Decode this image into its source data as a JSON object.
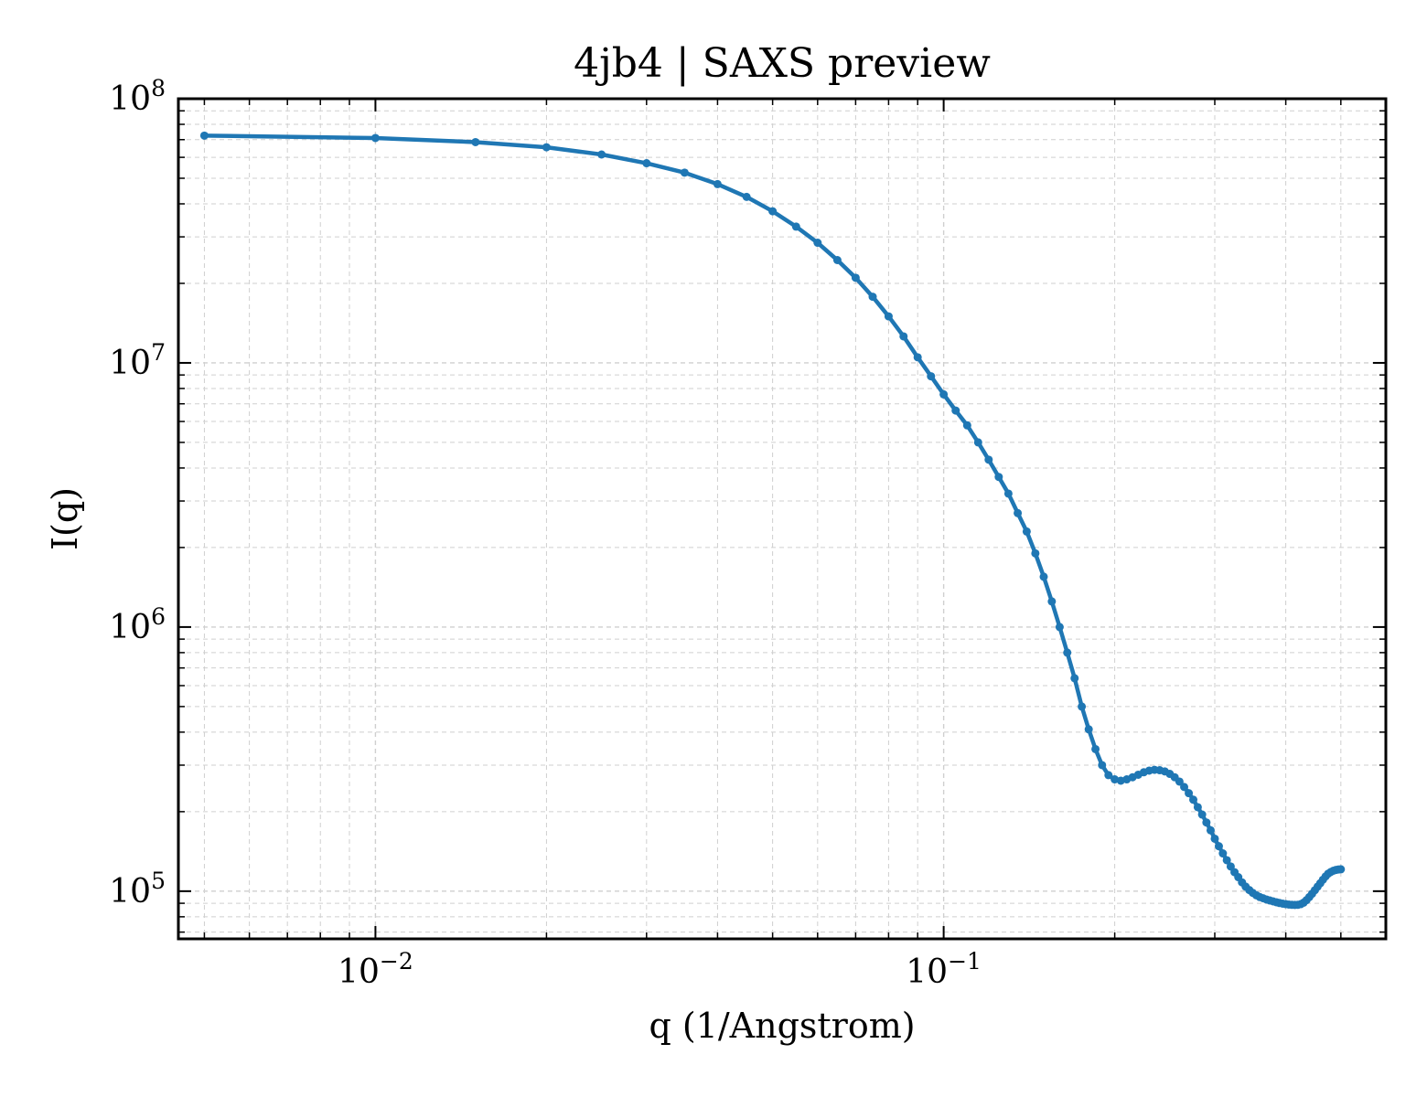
{
  "chart_data": {
    "type": "line",
    "title": "4jb4 | SAXS preview",
    "xlabel": "q (1/Angstrom)",
    "ylabel": "I(q)",
    "xscale": "log",
    "yscale": "log",
    "xlim": [
      0.0045,
      0.6
    ],
    "ylim": [
      66000,
      100000000
    ],
    "grid": true,
    "legend": "none",
    "colors": {
      "series": "#1f77b4",
      "grid": "#cfcfcf",
      "axes": "#000000"
    },
    "x_ticks": [
      {
        "value": 0.01,
        "base": "10",
        "exp": "−2"
      },
      {
        "value": 0.1,
        "base": "10",
        "exp": "−1"
      }
    ],
    "y_ticks": [
      {
        "value": 100000,
        "base": "10",
        "exp": "5"
      },
      {
        "value": 1000000,
        "base": "10",
        "exp": "6"
      },
      {
        "value": 10000000,
        "base": "10",
        "exp": "7"
      },
      {
        "value": 100000000,
        "base": "10",
        "exp": "8"
      }
    ],
    "series": [
      {
        "x": [
          0.005,
          0.01,
          0.015,
          0.02,
          0.025,
          0.03,
          0.035,
          0.04,
          0.045,
          0.05,
          0.055,
          0.06,
          0.065,
          0.07,
          0.075,
          0.08,
          0.085,
          0.09,
          0.095,
          0.1,
          0.105,
          0.11,
          0.115,
          0.12,
          0.125,
          0.13,
          0.135,
          0.14,
          0.145,
          0.15,
          0.155,
          0.16,
          0.165,
          0.17,
          0.175,
          0.18,
          0.185,
          0.19,
          0.195,
          0.2,
          0.205,
          0.21,
          0.215,
          0.22,
          0.225,
          0.23,
          0.235,
          0.24,
          0.245,
          0.25,
          0.255,
          0.26,
          0.265,
          0.27,
          0.275,
          0.28,
          0.285,
          0.29,
          0.295,
          0.3,
          0.305,
          0.31,
          0.315,
          0.32,
          0.325,
          0.33,
          0.335,
          0.34,
          0.345,
          0.35,
          0.355,
          0.36,
          0.365,
          0.37,
          0.375,
          0.38,
          0.385,
          0.39,
          0.395,
          0.4,
          0.405,
          0.41,
          0.415,
          0.42,
          0.425,
          0.43,
          0.435,
          0.44,
          0.445,
          0.45,
          0.455,
          0.46,
          0.465,
          0.47,
          0.475,
          0.48,
          0.485,
          0.49,
          0.495,
          0.5
        ],
        "y": [
          72500000,
          71000000,
          68500000,
          65500000,
          61500000,
          57000000,
          52500000,
          47500000,
          42500000,
          37500000,
          32800000,
          28500000,
          24500000,
          21000000,
          17800000,
          15000000,
          12600000,
          10500000,
          8900000,
          7600000,
          6600000,
          5800000,
          5000000,
          4300000,
          3700000,
          3200000,
          2700000,
          2300000,
          1900000,
          1550000,
          1250000,
          1000000,
          800000,
          640000,
          500000,
          410000,
          345000,
          300000,
          275000,
          265000,
          262000,
          265000,
          270000,
          276000,
          282000,
          286000,
          288000,
          287000,
          284000,
          278000,
          270000,
          260000,
          248000,
          235000,
          222000,
          208000,
          195000,
          182000,
          170000,
          158000,
          148000,
          139000,
          131000,
          124000,
          118000,
          113000,
          108000,
          104000,
          101000,
          98500,
          96500,
          95000,
          94000,
          93000,
          92200,
          91500,
          90800,
          90200,
          89700,
          89300,
          89000,
          88800,
          88700,
          88800,
          89300,
          90500,
          92500,
          95000,
          97800,
          100800,
          104000,
          107200,
          110500,
          113700,
          116500,
          118200,
          119500,
          120300,
          120800,
          121000
        ]
      }
    ]
  }
}
